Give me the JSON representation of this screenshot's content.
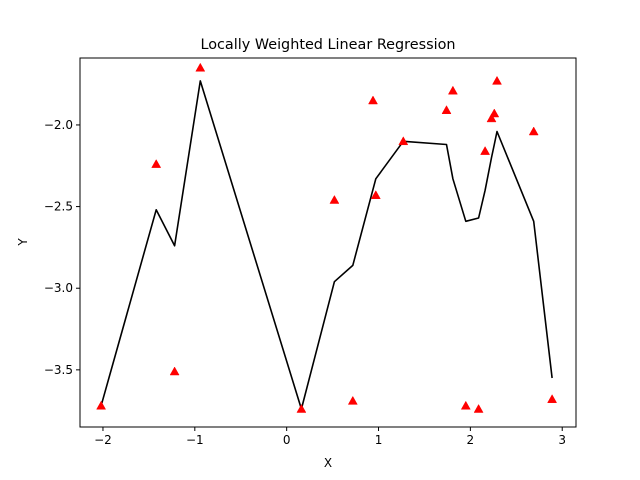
{
  "chart_data": {
    "type": "line",
    "title": "Locally Weighted Linear Regression",
    "xlabel": "X",
    "ylabel": "Y",
    "xlim": [
      -2.25,
      3.15
    ],
    "ylim": [
      -3.85,
      -1.59
    ],
    "xticks": [
      -2,
      -1,
      0,
      1,
      2,
      3
    ],
    "yticks": [
      -3.5,
      -3.0,
      -2.5,
      -2.0
    ],
    "xtick_labels": [
      "−2",
      "−1",
      "0",
      "1",
      "2",
      "3"
    ],
    "ytick_labels": [
      "−3.5",
      "−3.0",
      "−2.5",
      "−2.0"
    ],
    "grid": false,
    "series": [
      {
        "kind": "line",
        "color": "#000000",
        "x": [
          -2.02,
          -1.42,
          -1.22,
          -0.94,
          0.16,
          0.52,
          0.72,
          0.97,
          1.27,
          1.74,
          1.81,
          1.95,
          2.09,
          2.16,
          2.23,
          2.26,
          2.29,
          2.69,
          2.89
        ],
        "y": [
          -3.72,
          -2.52,
          -2.74,
          -1.73,
          -3.74,
          -2.96,
          -2.86,
          -2.33,
          -2.1,
          -2.12,
          -2.33,
          -2.59,
          -2.57,
          -2.4,
          -2.2,
          -2.12,
          -2.04,
          -2.59,
          -3.55
        ]
      },
      {
        "kind": "scatter",
        "marker": "triangle",
        "color": "#ff0000",
        "x": [
          -2.02,
          -1.42,
          -1.22,
          -0.94,
          0.16,
          0.52,
          0.72,
          0.94,
          0.97,
          1.27,
          1.74,
          1.81,
          1.95,
          2.09,
          2.16,
          2.23,
          2.26,
          2.29,
          2.69,
          2.89
        ],
        "y": [
          -3.72,
          -2.24,
          -3.51,
          -1.65,
          -3.74,
          -2.46,
          -3.69,
          -1.85,
          -2.43,
          -2.1,
          -1.91,
          -1.79,
          -3.72,
          -3.74,
          -2.16,
          -1.96,
          -1.93,
          -1.73,
          -2.04,
          -3.68
        ]
      }
    ]
  }
}
